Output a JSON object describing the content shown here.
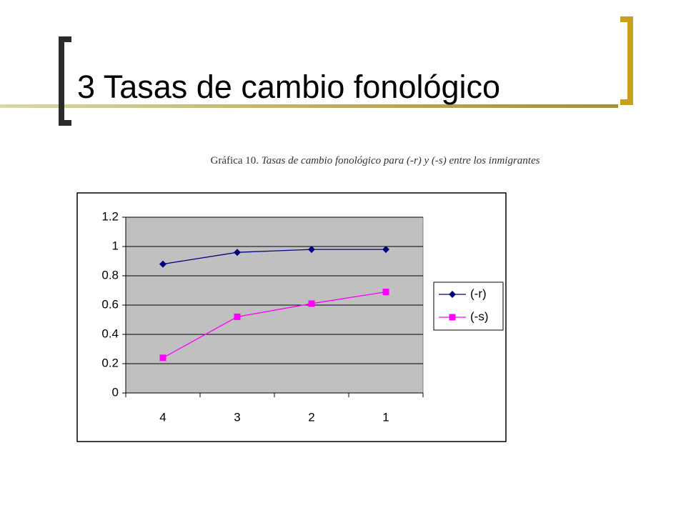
{
  "slide": {
    "title": "3 Tasas de cambio fonológico"
  },
  "chart_data": {
    "type": "line",
    "caption_label": "Gráfica 10.",
    "title": "Tasas de cambio fonológico para (-r) y (-s) entre los inmigrantes",
    "categories": [
      "4",
      "3",
      "2",
      "1"
    ],
    "series": [
      {
        "name": "(-r)",
        "color": "#000080",
        "marker": "diamond",
        "values": [
          0.88,
          0.96,
          0.98,
          0.98
        ]
      },
      {
        "name": "(-s)",
        "color": "#ff00ff",
        "marker": "square",
        "values": [
          0.24,
          0.52,
          0.61,
          0.69
        ]
      }
    ],
    "ylim": [
      0,
      1.2
    ],
    "yticks": [
      0,
      0.2,
      0.4,
      0.6,
      0.8,
      1,
      1.2
    ],
    "grid": true,
    "plot_background": "#c0c0c0",
    "legend": "right"
  }
}
